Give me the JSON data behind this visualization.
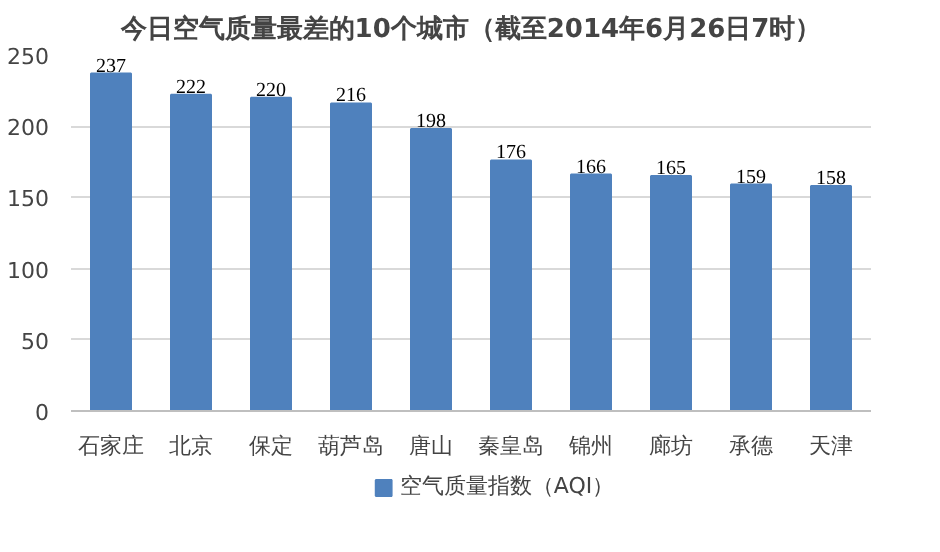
{
  "chart_data": {
    "type": "bar",
    "title": "今日空气质量最差的10个城市（截至2014年6月26日7时）",
    "categories": [
      "石家庄",
      "北京",
      "保定",
      "葫芦岛",
      "唐山",
      "秦皇岛",
      "锦州",
      "廊坊",
      "承德",
      "天津"
    ],
    "series": [
      {
        "name": "空气质量指数（AQI）",
        "color": "#4f81bd",
        "values": [
          237,
          222,
          220,
          216,
          198,
          176,
          166,
          165,
          159,
          158
        ]
      }
    ],
    "ylim": [
      0,
      250
    ],
    "yticks": [
      0,
      50,
      100,
      150,
      200,
      250
    ],
    "grid": "y",
    "legend": "bottom",
    "data_labels": true
  }
}
